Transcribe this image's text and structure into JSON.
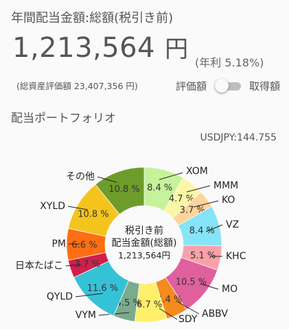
{
  "header": {
    "title": "年間配当金額:総額(税引き前)"
  },
  "summary": {
    "total_amount": "1,213,564",
    "unit": "円",
    "yield_text": "(年利 5.18%)",
    "asset_note": "(総資産評価額 23,407,356 円)"
  },
  "toggle": {
    "left_label": "評価額",
    "right_label": "取得額",
    "state": "off"
  },
  "section": {
    "title": "配当ポートフォリオ"
  },
  "fx_rate": "USDJPY:144.755",
  "chart_data": {
    "type": "pie",
    "style": "donut",
    "center_text": [
      "税引き前",
      "配当金額(総額)",
      "1,213,564円"
    ],
    "slices": [
      {
        "name": "XOM",
        "value": 8.4,
        "label": "8.4 %",
        "color": "#c6f39a"
      },
      {
        "name": "MMM",
        "value": 4.7,
        "label": "4.7 %",
        "color": "#faf7a6"
      },
      {
        "name": "KO",
        "value": 3.7,
        "label": "3.7 %",
        "color": "#ffd49a"
      },
      {
        "name": "VZ",
        "value": 8.4,
        "label": "8.4 %",
        "color": "#86e4f8"
      },
      {
        "name": "KHC",
        "value": 5.1,
        "label": "5.1 %",
        "color": "#f9a1a9"
      },
      {
        "name": "MO",
        "value": 10.5,
        "label": "10.5 %",
        "color": "#e0609e"
      },
      {
        "name": "ABBV",
        "value": 4.4,
        "label": "4.4 %",
        "color": "#f58a1d"
      },
      {
        "name": "SDY",
        "value": 6.7,
        "label": "6.7 %",
        "color": "#fff06c"
      },
      {
        "name": "VYM",
        "value": 4.5,
        "label": "4.5 %",
        "color": "#7aab8d"
      },
      {
        "name": "QYLD",
        "value": 11.6,
        "label": "11.6 %",
        "color": "#36c2d6"
      },
      {
        "name": "日本たばこ",
        "value": 3.7,
        "label": "3.7 %",
        "color": "#d11f4d"
      },
      {
        "name": "PM",
        "value": 6.6,
        "label": "6.6 %",
        "color": "#ff6e12"
      },
      {
        "name": "XYLD",
        "value": 10.8,
        "label": "10.8 %",
        "color": "#f5c41c"
      },
      {
        "name": "その他",
        "value": 10.8,
        "label": "10.8 %",
        "color": "#6e9c2a"
      }
    ]
  }
}
